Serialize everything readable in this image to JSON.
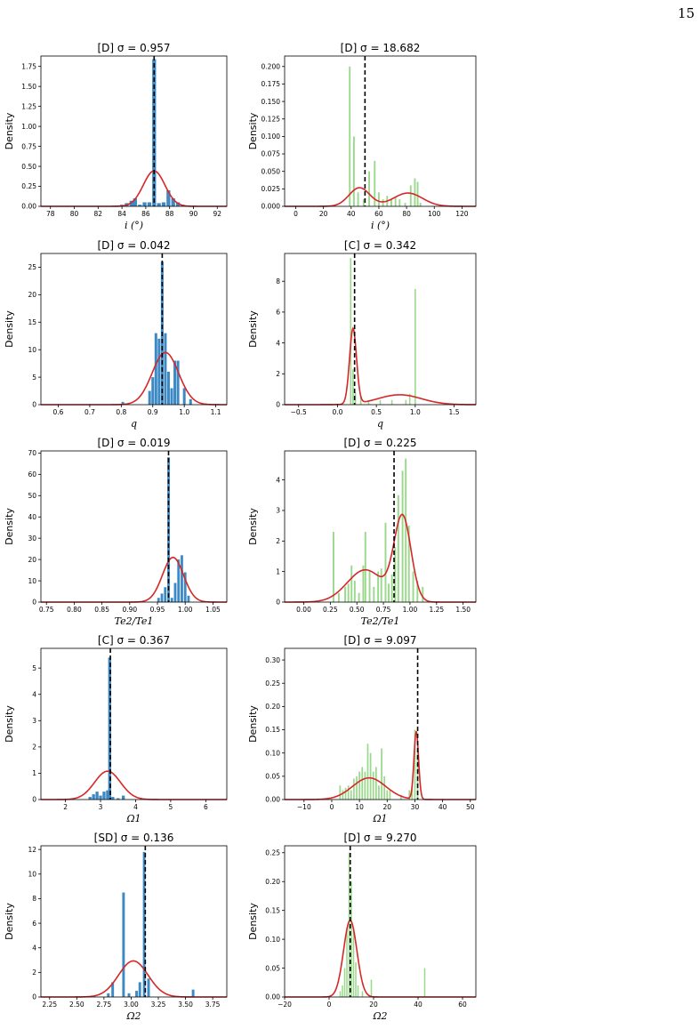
{
  "page": {
    "number": "15"
  },
  "colors": {
    "blue": "#3d89c4",
    "green": "#9ad88c",
    "kde": "#d62728",
    "truth": "#000000",
    "axis": "#000000"
  },
  "chart_data": [
    {
      "type": "bar",
      "title": "[D]  σ = 0.957",
      "xlabel": "i (°)",
      "ylabel": "Density",
      "xlim": [
        77.2,
        92.8
      ],
      "ylim": [
        0,
        1.88
      ],
      "grid": false,
      "xticks": [
        78,
        80,
        82,
        84,
        86,
        88,
        90,
        92
      ],
      "xtick_labels": [
        "78",
        "80",
        "82",
        "84",
        "86",
        "88",
        "90",
        "92"
      ],
      "yticks": [
        0,
        0.25,
        0.5,
        0.75,
        1.0,
        1.25,
        1.5,
        1.75
      ],
      "ytick_labels": [
        "0.00",
        "0.25",
        "0.50",
        "0.75",
        "1.00",
        "1.25",
        "1.50",
        "1.75"
      ],
      "bar_color": "blue",
      "bar_width": 0.32,
      "bars": [
        [
          83.6,
          0.01
        ],
        [
          84.0,
          0.02
        ],
        [
          84.4,
          0.04
        ],
        [
          84.8,
          0.07
        ],
        [
          85.1,
          0.1
        ],
        [
          85.5,
          0.02
        ],
        [
          85.9,
          0.05
        ],
        [
          86.3,
          0.05
        ],
        [
          86.7,
          1.84
        ],
        [
          87.1,
          0.04
        ],
        [
          87.5,
          0.05
        ],
        [
          87.9,
          0.2
        ],
        [
          88.3,
          0.1
        ],
        [
          88.7,
          0.05
        ],
        [
          89.1,
          0.02
        ]
      ],
      "kde": {
        "components": [
          [
            1,
            86.7,
            0.9
          ]
        ]
      },
      "truth": 86.7
    },
    {
      "type": "bar",
      "title": "[D]  σ = 18.682",
      "xlabel": "i (°)",
      "ylabel": "Density",
      "xlim": [
        -8,
        130
      ],
      "ylim": [
        0,
        0.215
      ],
      "grid": false,
      "xticks": [
        0,
        20,
        40,
        60,
        80,
        100,
        120
      ],
      "xtick_labels": [
        "0",
        "20",
        "40",
        "60",
        "80",
        "100",
        "120"
      ],
      "yticks": [
        0,
        0.025,
        0.05,
        0.075,
        0.1,
        0.125,
        0.15,
        0.175,
        0.2
      ],
      "ytick_labels": [
        "0.000",
        "0.025",
        "0.050",
        "0.075",
        "0.100",
        "0.125",
        "0.150",
        "0.175",
        "0.200"
      ],
      "bar_color": "green",
      "bar_width": 1.2,
      "bars": [
        [
          39,
          0.2
        ],
        [
          42,
          0.1
        ],
        [
          45,
          0.02
        ],
        [
          49,
          0.01
        ],
        [
          53,
          0.05
        ],
        [
          57,
          0.065
        ],
        [
          60,
          0.02
        ],
        [
          63,
          0.01
        ],
        [
          66,
          0.015
        ],
        [
          69,
          0.01
        ],
        [
          72,
          0.012
        ],
        [
          75,
          0.01
        ],
        [
          79,
          0.005
        ],
        [
          83,
          0.03
        ],
        [
          86,
          0.04
        ],
        [
          88,
          0.035
        ],
        [
          90,
          0.005
        ]
      ],
      "kde": {
        "components": [
          [
            0.5,
            46,
            7.5
          ],
          [
            0.5,
            81,
            10.5
          ]
        ]
      },
      "truth": 50
    },
    {
      "type": "bar",
      "title": "[D]  σ = 0.042",
      "xlabel": "q",
      "ylabel": "Density",
      "xlim": [
        0.545,
        1.135
      ],
      "ylim": [
        0,
        27.5
      ],
      "grid": false,
      "xticks": [
        0.6,
        0.7,
        0.8,
        0.9,
        1.0,
        1.1
      ],
      "xtick_labels": [
        "0.6",
        "0.7",
        "0.8",
        "0.9",
        "1.0",
        "1.1"
      ],
      "yticks": [
        0,
        5,
        10,
        15,
        20,
        25
      ],
      "ytick_labels": [
        "0",
        "5",
        "10",
        "15",
        "20",
        "25"
      ],
      "bar_color": "blue",
      "bar_width": 0.0085,
      "bars": [
        [
          0.805,
          0.5
        ],
        [
          0.89,
          2.5
        ],
        [
          0.9,
          5
        ],
        [
          0.91,
          13
        ],
        [
          0.92,
          12
        ],
        [
          0.93,
          26
        ],
        [
          0.94,
          13
        ],
        [
          0.95,
          6
        ],
        [
          0.96,
          3
        ],
        [
          0.97,
          8
        ],
        [
          0.98,
          8
        ],
        [
          1.0,
          3
        ],
        [
          1.02,
          1
        ]
      ],
      "kde": {
        "components": [
          [
            1,
            0.94,
            0.042
          ]
        ]
      },
      "truth": 0.93
    },
    {
      "type": "bar",
      "title": "[C]  σ = 0.342",
      "xlabel": "q",
      "ylabel": "Density",
      "xlim": [
        -0.68,
        1.78
      ],
      "ylim": [
        0,
        9.8
      ],
      "grid": false,
      "xticks": [
        -0.5,
        0.0,
        0.5,
        1.0,
        1.5
      ],
      "xtick_labels": [
        "−0.5",
        "0.0",
        "0.5",
        "1.0",
        "1.5"
      ],
      "yticks": [
        0,
        2,
        4,
        6,
        8
      ],
      "ytick_labels": [
        "0",
        "2",
        "4",
        "6",
        "8"
      ],
      "bar_color": "green",
      "bar_width": 0.018,
      "bars": [
        [
          0.17,
          9.5
        ],
        [
          0.2,
          2.3
        ],
        [
          0.23,
          0.8
        ],
        [
          0.3,
          0.5
        ],
        [
          0.4,
          0.3
        ],
        [
          0.55,
          0.3
        ],
        [
          0.7,
          0.3
        ],
        [
          0.88,
          0.3
        ],
        [
          0.93,
          0.7
        ],
        [
          1.0,
          7.5
        ]
      ],
      "kde": {
        "components": [
          [
            0.55,
            0.2,
            0.045
          ],
          [
            0.45,
            0.8,
            0.28
          ]
        ]
      },
      "truth": 0.22
    },
    {
      "type": "bar",
      "title": "[D]  σ = 0.019",
      "xlabel": "Te2/Te1",
      "ylabel": "Density",
      "xlim": [
        0.74,
        1.075
      ],
      "ylim": [
        0,
        71
      ],
      "grid": false,
      "xticks": [
        0.75,
        0.8,
        0.85,
        0.9,
        0.95,
        1.0,
        1.05
      ],
      "xtick_labels": [
        "0.75",
        "0.80",
        "0.85",
        "0.90",
        "0.95",
        "1.00",
        "1.05"
      ],
      "yticks": [
        0,
        10,
        20,
        30,
        40,
        50,
        60,
        70
      ],
      "ytick_labels": [
        "0",
        "10",
        "20",
        "30",
        "40",
        "50",
        "60",
        "70"
      ],
      "bar_color": "blue",
      "bar_width": 0.0045,
      "bars": [
        [
          0.952,
          2
        ],
        [
          0.958,
          4
        ],
        [
          0.964,
          7
        ],
        [
          0.97,
          68
        ],
        [
          0.976,
          2
        ],
        [
          0.982,
          9
        ],
        [
          0.988,
          20
        ],
        [
          0.994,
          22
        ],
        [
          1.0,
          14
        ],
        [
          1.006,
          3
        ]
      ],
      "kde": {
        "components": [
          [
            1,
            0.978,
            0.019
          ]
        ]
      },
      "truth": 0.97
    },
    {
      "type": "bar",
      "title": "[D]  σ = 0.225",
      "xlabel": "Te2/Te1",
      "ylabel": "Density",
      "xlim": [
        -0.18,
        1.62
      ],
      "ylim": [
        0,
        4.95
      ],
      "grid": false,
      "xticks": [
        0.0,
        0.25,
        0.5,
        0.75,
        1.0,
        1.25,
        1.5
      ],
      "xtick_labels": [
        "0.00",
        "0.25",
        "0.50",
        "0.75",
        "1.00",
        "1.25",
        "1.50"
      ],
      "yticks": [
        0,
        1,
        2,
        3,
        4
      ],
      "ytick_labels": [
        "0",
        "1",
        "2",
        "3",
        "4"
      ],
      "bar_color": "green",
      "bar_width": 0.016,
      "bars": [
        [
          0.28,
          2.3
        ],
        [
          0.33,
          0.3
        ],
        [
          0.39,
          0.5
        ],
        [
          0.42,
          0.6
        ],
        [
          0.45,
          1.2
        ],
        [
          0.48,
          0.7
        ],
        [
          0.52,
          0.3
        ],
        [
          0.56,
          1.2
        ],
        [
          0.58,
          2.3
        ],
        [
          0.62,
          1.0
        ],
        [
          0.66,
          0.5
        ],
        [
          0.7,
          1.0
        ],
        [
          0.73,
          1.1
        ],
        [
          0.77,
          2.6
        ],
        [
          0.8,
          0.6
        ],
        [
          0.83,
          0.9
        ],
        [
          0.86,
          1.8
        ],
        [
          0.89,
          3.5
        ],
        [
          0.93,
          4.3
        ],
        [
          0.96,
          4.7
        ],
        [
          0.99,
          2.5
        ],
        [
          1.03,
          1.0
        ],
        [
          1.07,
          0.7
        ],
        [
          1.12,
          0.5
        ]
      ],
      "kde": {
        "components": [
          [
            0.45,
            0.58,
            0.17
          ],
          [
            0.55,
            0.93,
            0.08
          ]
        ]
      },
      "truth": 0.85
    },
    {
      "type": "bar",
      "title": "[C]  σ = 0.367",
      "xlabel": "Ω1",
      "ylabel": "Density",
      "xlim": [
        1.3,
        6.6
      ],
      "ylim": [
        0,
        5.75
      ],
      "grid": false,
      "xticks": [
        2,
        3,
        4,
        5,
        6
      ],
      "xtick_labels": [
        "2",
        "3",
        "4",
        "5",
        "6"
      ],
      "yticks": [
        0,
        1,
        2,
        3,
        4,
        5
      ],
      "ytick_labels": [
        "0",
        "1",
        "2",
        "3",
        "4",
        "5"
      ],
      "bar_color": "blue",
      "bar_width": 0.085,
      "bars": [
        [
          2.7,
          0.1
        ],
        [
          2.8,
          0.2
        ],
        [
          2.9,
          0.3
        ],
        [
          3.0,
          0.15
        ],
        [
          3.1,
          0.3
        ],
        [
          3.2,
          0.35
        ],
        [
          3.26,
          5.4
        ],
        [
          3.35,
          0.1
        ],
        [
          3.5,
          0.05
        ],
        [
          3.65,
          0.15
        ]
      ],
      "kde": {
        "components": [
          [
            1,
            3.2,
            0.37
          ]
        ]
      },
      "truth": 3.28
    },
    {
      "type": "bar",
      "title": "[D]  σ = 9.097",
      "xlabel": "Ω1",
      "ylabel": "Density",
      "xlim": [
        -17,
        52
      ],
      "ylim": [
        0,
        0.325
      ],
      "grid": false,
      "xticks": [
        -10,
        0,
        10,
        20,
        30,
        40,
        50
      ],
      "xtick_labels": [
        "−10",
        "0",
        "10",
        "20",
        "30",
        "40",
        "50"
      ],
      "yticks": [
        0,
        0.05,
        0.1,
        0.15,
        0.2,
        0.25,
        0.3
      ],
      "ytick_labels": [
        "0.00",
        "0.05",
        "0.10",
        "0.15",
        "0.20",
        "0.25",
        "0.30"
      ],
      "bar_color": "green",
      "bar_width": 0.55,
      "bars": [
        [
          3,
          0.03
        ],
        [
          4,
          0.02
        ],
        [
          5,
          0.025
        ],
        [
          6,
          0.03
        ],
        [
          7,
          0.02
        ],
        [
          8,
          0.045
        ],
        [
          9,
          0.05
        ],
        [
          10,
          0.06
        ],
        [
          11,
          0.07
        ],
        [
          12,
          0.06
        ],
        [
          13,
          0.12
        ],
        [
          14,
          0.1
        ],
        [
          15,
          0.06
        ],
        [
          16,
          0.07
        ],
        [
          17,
          0.03
        ],
        [
          18,
          0.11
        ],
        [
          19,
          0.05
        ],
        [
          20,
          0.02
        ],
        [
          21,
          0.02
        ],
        [
          25,
          0.01
        ],
        [
          28,
          0.02
        ],
        [
          29,
          0.03
        ],
        [
          30,
          0.15
        ],
        [
          31,
          0.1
        ]
      ],
      "kde": {
        "components": [
          [
            0.7,
            13.5,
            6
          ],
          [
            0.3,
            30.5,
            0.82
          ]
        ]
      },
      "truth": 31
    },
    {
      "type": "bar",
      "title": "[SD]  σ = 0.136",
      "xlabel": "Ω2",
      "ylabel": "Density",
      "xlim": [
        2.17,
        3.88
      ],
      "ylim": [
        0,
        12.3
      ],
      "grid": false,
      "xticks": [
        2.25,
        2.5,
        2.75,
        3.0,
        3.25,
        3.5,
        3.75
      ],
      "xtick_labels": [
        "2.25",
        "2.50",
        "2.75",
        "3.00",
        "3.25",
        "3.50",
        "3.75"
      ],
      "yticks": [
        0,
        2,
        4,
        6,
        8,
        10,
        12
      ],
      "ytick_labels": [
        "0",
        "2",
        "4",
        "6",
        "8",
        "10",
        "12"
      ],
      "bar_color": "blue",
      "bar_width": 0.024,
      "bars": [
        [
          2.79,
          0.3
        ],
        [
          2.83,
          1.2
        ],
        [
          2.93,
          8.5
        ],
        [
          2.98,
          0.3
        ],
        [
          3.05,
          0.5
        ],
        [
          3.08,
          1.2
        ],
        [
          3.12,
          11.8
        ],
        [
          3.16,
          1.5
        ],
        [
          3.57,
          0.6
        ]
      ],
      "kde": {
        "components": [
          [
            1,
            3.02,
            0.136
          ]
        ]
      },
      "truth": 3.13
    },
    {
      "type": "bar",
      "title": "[D]  σ = 9.270",
      "xlabel": "Ω2",
      "ylabel": "Density",
      "xlim": [
        -20,
        66
      ],
      "ylim": [
        0,
        0.262
      ],
      "grid": false,
      "xticks": [
        -20,
        0,
        20,
        40,
        60
      ],
      "xtick_labels": [
        "−20",
        "0",
        "20",
        "40",
        "60"
      ],
      "yticks": [
        0,
        0.05,
        0.1,
        0.15,
        0.2,
        0.25
      ],
      "ytick_labels": [
        "0.00",
        "0.05",
        "0.10",
        "0.15",
        "0.20",
        "0.25"
      ],
      "bar_color": "green",
      "bar_width": 0.6,
      "bars": [
        [
          5,
          0.01
        ],
        [
          6,
          0.02
        ],
        [
          7,
          0.05
        ],
        [
          8,
          0.12
        ],
        [
          9,
          0.25
        ],
        [
          10,
          0.2
        ],
        [
          11,
          0.12
        ],
        [
          12,
          0.06
        ],
        [
          13,
          0.02
        ],
        [
          15,
          0.01
        ],
        [
          19,
          0.03
        ],
        [
          43,
          0.05
        ]
      ],
      "kde": {
        "components": [
          [
            1,
            9.5,
            3
          ]
        ]
      },
      "truth": 9.5
    }
  ]
}
